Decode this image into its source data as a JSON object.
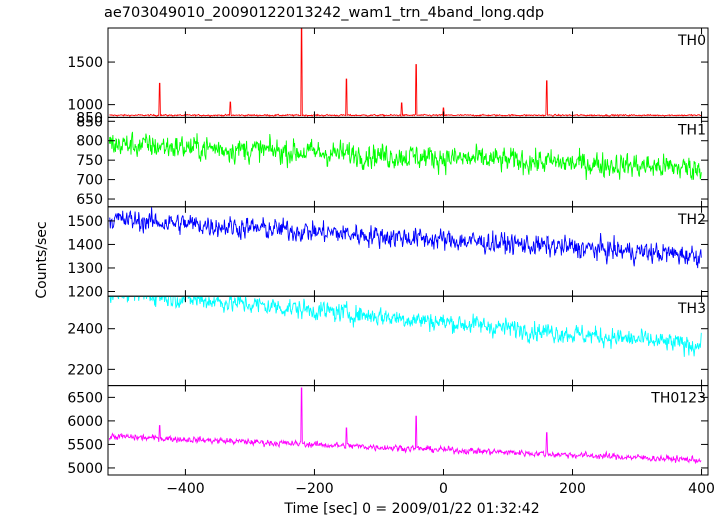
{
  "chart_data": {
    "type": "line",
    "title": "ae703049010_20090122013242_wam1_trn_4band_long.qdp",
    "xlabel": "Time [sec] 0 = 2009/01/22 01:32:42",
    "ylabel": "Counts/sec",
    "xlim": [
      -520,
      410
    ],
    "x_ticks": [
      -400,
      -200,
      0,
      200,
      400
    ],
    "x_tick_labels": [
      "−400",
      "−200",
      "0",
      "200",
      "400"
    ],
    "panels": [
      {
        "name": "TH0",
        "color": "#ff0000",
        "ylim": [
          850,
          1900
        ],
        "y_ticks": [
          850,
          1000,
          1500
        ],
        "baseline": 875,
        "trend": 0,
        "noise": 8,
        "spikes": [
          {
            "x": -440,
            "y": 1250
          },
          {
            "x": -330,
            "y": 1030
          },
          {
            "x": -220,
            "y": 1900
          },
          {
            "x": -150,
            "y": 1300
          },
          {
            "x": -65,
            "y": 1020
          },
          {
            "x": -42,
            "y": 1470
          },
          {
            "x": 0,
            "y": 960
          },
          {
            "x": 160,
            "y": 1280
          }
        ]
      },
      {
        "name": "TH1",
        "color": "#00ff00",
        "ylim": [
          630,
          860
        ],
        "y_ticks": [
          650,
          700,
          750,
          800,
          850
        ],
        "baseline": 760,
        "trend": -0.068,
        "noise": 28,
        "spikes": []
      },
      {
        "name": "TH2",
        "color": "#0000ff",
        "ylim": [
          1180,
          1560
        ],
        "y_ticks": [
          1200,
          1300,
          1400,
          1500
        ],
        "baseline": 1430,
        "trend": -0.17,
        "noise": 40,
        "spikes": []
      },
      {
        "name": "TH3",
        "color": "#00ffff",
        "ylim": [
          2120,
          2560
        ],
        "y_ticks": [
          2200,
          2400
        ],
        "baseline": 2450,
        "trend": -0.29,
        "noise": 42,
        "spikes": []
      },
      {
        "name": "TH0123",
        "color": "#ff00ff",
        "ylim": [
          4850,
          6750
        ],
        "y_ticks": [
          5000,
          5500,
          6000,
          6500
        ],
        "baseline": 5420,
        "trend": -0.55,
        "noise": 60,
        "spikes": [
          {
            "x": -440,
            "y": 5900
          },
          {
            "x": -220,
            "y": 6700
          },
          {
            "x": -150,
            "y": 5850
          },
          {
            "x": -42,
            "y": 6100
          },
          {
            "x": 160,
            "y": 5750
          }
        ]
      }
    ]
  }
}
